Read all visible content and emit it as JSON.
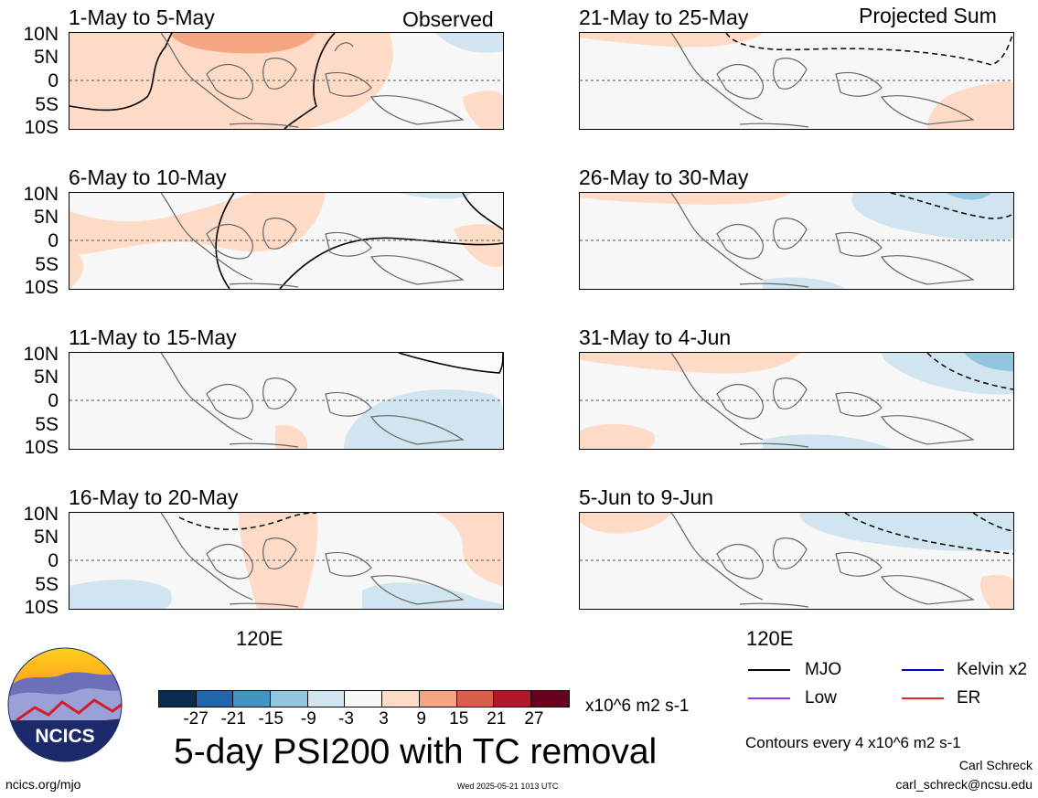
{
  "observed_label": "Observed",
  "projected_label": "Projected Sum",
  "lat_labels": [
    "10N",
    "5N",
    "0",
    "5S",
    "10S"
  ],
  "lon_label": "120E",
  "panels_left": [
    {
      "title": "1-May to 5-May"
    },
    {
      "title": "6-May to 10-May"
    },
    {
      "title": "11-May to 15-May"
    },
    {
      "title": "16-May to 20-May"
    }
  ],
  "panels_right": [
    {
      "title": "21-May to 25-May"
    },
    {
      "title": "26-May to 30-May"
    },
    {
      "title": "31-May to 4-Jun"
    },
    {
      "title": "5-Jun to 9-Jun"
    }
  ],
  "colorbar": {
    "colors": [
      "#0b2a52",
      "#2166ac",
      "#4393c3",
      "#92c5de",
      "#d1e5f0",
      "#f7f7f7",
      "#fddbc7",
      "#f4a582",
      "#d6604d",
      "#b2182b",
      "#67001f"
    ],
    "ticks": [
      "-27",
      "-21",
      "-15",
      "-9",
      "-3",
      "3",
      "9",
      "15",
      "21",
      "27"
    ],
    "units": "x10^6 m2 s-1"
  },
  "title": "5-day PSI200 with TC removal",
  "legend": [
    {
      "label": "MJO",
      "color": "#000000"
    },
    {
      "label": "Kelvin x2",
      "color": "#0000cc"
    },
    {
      "label": "Low",
      "color": "#9933ee"
    },
    {
      "label": "ER",
      "color": "#ee2222"
    }
  ],
  "contours_note": "Contours every 4 x10^6 m2 s-1",
  "author": "Carl Schreck",
  "email": "carl_schreck@ncsu.edu",
  "url": "ncics.org/mjo",
  "timestamp": "Wed 2025-05-21 1013 UTC",
  "logo_text": "NCICS"
}
